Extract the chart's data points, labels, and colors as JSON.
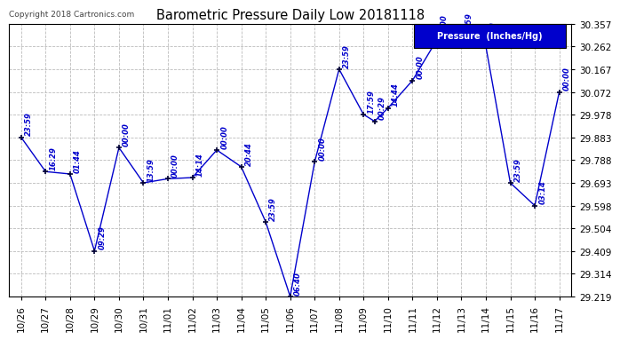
{
  "title": "Barometric Pressure Daily Low 20181118",
  "copyright": "Copyright 2018 Cartronics.com",
  "legend_label": "Pressure  (Inches/Hg)",
  "background_color": "#ffffff",
  "plot_bg_color": "#ffffff",
  "grid_color": "#bbbbbb",
  "line_color": "#0000cc",
  "marker_color": "#000033",
  "text_color": "#0000cc",
  "ylim": [
    29.219,
    30.357
  ],
  "yticks": [
    29.219,
    29.314,
    29.409,
    29.504,
    29.598,
    29.693,
    29.788,
    29.883,
    29.978,
    30.072,
    30.167,
    30.262,
    30.357
  ],
  "date_labels": [
    "10/26",
    "10/27",
    "10/28",
    "10/29",
    "10/30",
    "10/31",
    "11/01",
    "11/02",
    "11/03",
    "11/04",
    "11/05",
    "11/06",
    "11/07",
    "11/08",
    "11/09",
    "11/10",
    "11/11",
    "11/12",
    "11/13",
    "11/14",
    "11/15",
    "11/16",
    "11/17"
  ],
  "data_points": [
    {
      "x": 0,
      "value": 29.883,
      "time_label": "23:59"
    },
    {
      "x": 1,
      "value": 29.74,
      "time_label": "16:29"
    },
    {
      "x": 2,
      "value": 29.73,
      "time_label": "01:44"
    },
    {
      "x": 3,
      "value": 29.409,
      "time_label": "09:29"
    },
    {
      "x": 4,
      "value": 29.84,
      "time_label": "00:00"
    },
    {
      "x": 5,
      "value": 29.693,
      "time_label": "13:59"
    },
    {
      "x": 6,
      "value": 29.71,
      "time_label": "00:00"
    },
    {
      "x": 7,
      "value": 29.715,
      "time_label": "14:14"
    },
    {
      "x": 8,
      "value": 29.83,
      "time_label": "00:00"
    },
    {
      "x": 9,
      "value": 29.76,
      "time_label": "20:44"
    },
    {
      "x": 10,
      "value": 29.53,
      "time_label": "23:59"
    },
    {
      "x": 11,
      "value": 29.219,
      "time_label": "06:40"
    },
    {
      "x": 12,
      "value": 29.78,
      "time_label": "00:00"
    },
    {
      "x": 13,
      "value": 30.167,
      "time_label": "23:59"
    },
    {
      "x": 14,
      "value": 29.978,
      "time_label": "17:59"
    },
    {
      "x": 14.45,
      "value": 29.95,
      "time_label": "00:29"
    },
    {
      "x": 15,
      "value": 30.005,
      "time_label": "14:44"
    },
    {
      "x": 16,
      "value": 30.12,
      "time_label": "00:00"
    },
    {
      "x": 17,
      "value": 30.29,
      "time_label": "00:00"
    },
    {
      "x": 18,
      "value": 30.3,
      "time_label": "23:59"
    },
    {
      "x": 19,
      "value": 30.262,
      "time_label": "00:00"
    },
    {
      "x": 20,
      "value": 29.693,
      "time_label": "23:59"
    },
    {
      "x": 21,
      "value": 29.598,
      "time_label": "03:14"
    },
    {
      "x": 22,
      "value": 30.072,
      "time_label": "00:00"
    }
  ]
}
